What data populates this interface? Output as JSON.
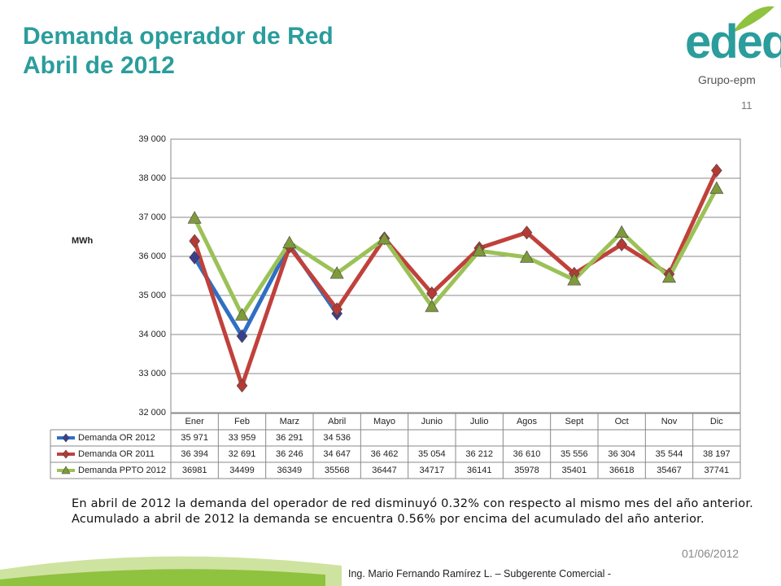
{
  "slide": {
    "title_line1": "Demanda operador de Red",
    "title_line2": "Abril de 2012",
    "logo": "edeq",
    "group": "Grupo-epm",
    "page_number": "11",
    "paragraph": "En abril de 2012 la demanda del operador de red disminuyó 0.32% con respecto al mismo mes del año anterior. Acumulado a abril de 2012 la demanda se encuentra 0.56% por encima del acumulado del año anterior.",
    "date": "01/06/2012",
    "footer": "Ing. Mario Fernando Ramírez L. – Subgerente Comercial -"
  },
  "chart_data": {
    "type": "line",
    "ylabel": "MWh",
    "categories": [
      "Ener",
      "Feb",
      "Marz",
      "Abril",
      "Mayo",
      "Junio",
      "Julio",
      "Agos",
      "Sept",
      "Oct",
      "Nov",
      "Dic"
    ],
    "ylim": [
      32000,
      39000
    ],
    "yticks": [
      {
        "value": 32000,
        "label": "32 000"
      },
      {
        "value": 33000,
        "label": "33 000"
      },
      {
        "value": 34000,
        "label": "34 000"
      },
      {
        "value": 35000,
        "label": "35 000"
      },
      {
        "value": 36000,
        "label": "36 000"
      },
      {
        "value": 37000,
        "label": "37 000"
      },
      {
        "value": 38000,
        "label": "38 000"
      },
      {
        "value": 39000,
        "label": "39 000"
      }
    ],
    "grid": true,
    "series": [
      {
        "name": "Demanda OR 2012",
        "color": "#2f6fc4",
        "marker": "diamond",
        "marker_color": "#3a3f8c",
        "values": [
          35971,
          33959,
          36291,
          34536,
          null,
          null,
          null,
          null,
          null,
          null,
          null,
          null
        ],
        "value_labels": [
          "35 971",
          "33 959",
          "36 291",
          "34 536",
          null,
          null,
          null,
          null,
          null,
          null,
          null,
          null
        ]
      },
      {
        "name": "Demanda OR 2011",
        "color": "#c0413b",
        "marker": "diamond",
        "marker_color": "#b33a35",
        "values": [
          36394,
          32691,
          36246,
          34647,
          36462,
          35054,
          36212,
          36610,
          35556,
          36304,
          35544,
          38197
        ],
        "value_labels": [
          "36 394",
          "32 691",
          "36 246",
          "34 647",
          "36 462",
          "35 054",
          "36 212",
          "36 610",
          "35 556",
          "36 304",
          "35 544",
          "38 197"
        ]
      },
      {
        "name": "Demanda PPTO 2012",
        "color": "#9bc157",
        "marker": "triangle",
        "marker_color": "#7f9a3a",
        "values": [
          36981,
          34499,
          36349,
          35568,
          36447,
          34717,
          36141,
          35978,
          35401,
          36618,
          35467,
          37741
        ]
      }
    ]
  }
}
